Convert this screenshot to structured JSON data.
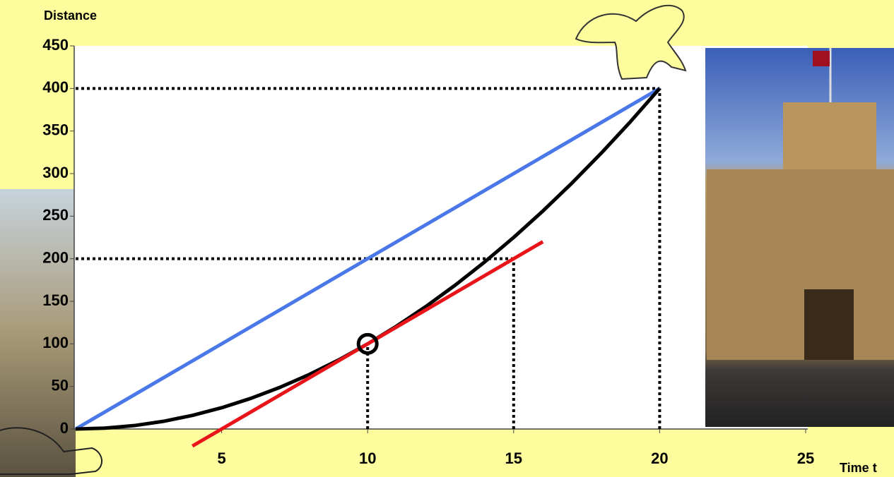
{
  "chart_data": {
    "type": "line",
    "y_label": "Distance",
    "x_label": "Time t",
    "xlim": [
      0,
      25
    ],
    "xticks": [
      5,
      10,
      15,
      20,
      25
    ],
    "ylim": [
      0,
      450
    ],
    "yticks": [
      0,
      50,
      100,
      150,
      200,
      250,
      300,
      350,
      400,
      450
    ],
    "series": [
      {
        "color": "#4a78e8",
        "x": [
          0,
          20
        ],
        "values": [
          0,
          400
        ]
      },
      {
        "color": "#000000",
        "x": [
          0,
          1,
          2,
          3,
          4,
          5,
          6,
          7,
          8,
          9,
          10,
          11,
          12,
          13,
          14,
          15,
          16,
          17,
          18,
          19,
          20
        ],
        "values": [
          0,
          1,
          4,
          9,
          16,
          25,
          36,
          49,
          64,
          81,
          100,
          121,
          144,
          169,
          196,
          225,
          256,
          289,
          324,
          361,
          400
        ]
      },
      {
        "color": "#e8141a",
        "x": [
          4,
          16
        ],
        "values": [
          -20,
          220
        ]
      }
    ],
    "guides": [
      {
        "x": 20,
        "y": 400,
        "horizontal": true
      },
      {
        "x": 15,
        "y": 200,
        "horizontal": true
      },
      {
        "x": 10,
        "y": 100,
        "horizontal": false
      }
    ],
    "marker": {
      "x": 10,
      "y": 100
    }
  }
}
